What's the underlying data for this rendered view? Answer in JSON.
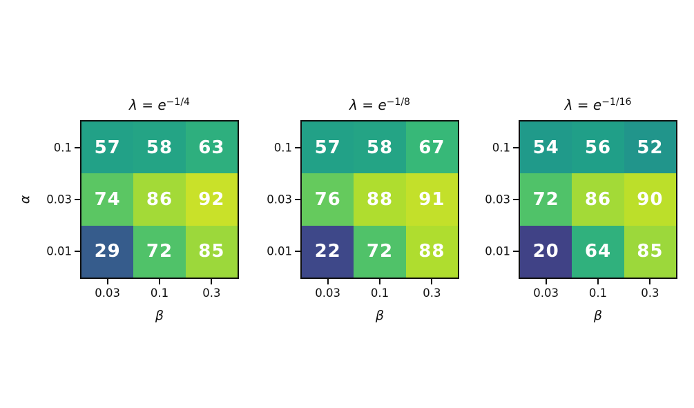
{
  "figure": {
    "background": "#ffffff",
    "axis_color": "#0f0f0f",
    "annotation_text_color": "#ffffff",
    "colormap": {
      "name": "viridis",
      "vmin": 0,
      "vmax": 100,
      "anchors": [
        "#440154",
        "#482878",
        "#3e4989",
        "#31688e",
        "#26828e",
        "#1f9e89",
        "#35b779",
        "#6ece58",
        "#b5de2b",
        "#fde725"
      ]
    }
  },
  "chart_data": [
    {
      "type": "heatmap",
      "title": "λ = e^(−1/4)",
      "title_base": "λ = e",
      "title_exponent": "−1/4",
      "xlabel": "β",
      "ylabel": "α",
      "x_ticks": [
        "0.03",
        "0.1",
        "0.3"
      ],
      "y_ticks": [
        "0.1",
        "0.03",
        "0.01"
      ],
      "rows": [
        [
          57,
          58,
          63
        ],
        [
          74,
          86,
          92
        ],
        [
          29,
          72,
          85
        ]
      ],
      "colormap": "viridis",
      "vmin": 0,
      "vmax": 100,
      "annotations": "cell values shown in white bold"
    },
    {
      "type": "heatmap",
      "title": "λ = e^(−1/8)",
      "title_base": "λ = e",
      "title_exponent": "−1/8",
      "xlabel": "β",
      "ylabel": "",
      "x_ticks": [
        "0.03",
        "0.1",
        "0.3"
      ],
      "y_ticks": [
        "0.1",
        "0.03",
        "0.01"
      ],
      "rows": [
        [
          57,
          58,
          67
        ],
        [
          76,
          88,
          91
        ],
        [
          22,
          72,
          88
        ]
      ],
      "colormap": "viridis",
      "vmin": 0,
      "vmax": 100,
      "annotations": "cell values shown in white bold"
    },
    {
      "type": "heatmap",
      "title": "λ = e^(−1/16)",
      "title_base": "λ = e",
      "title_exponent": "−1/16",
      "xlabel": "β",
      "ylabel": "",
      "x_ticks": [
        "0.03",
        "0.1",
        "0.3"
      ],
      "y_ticks": [
        "0.1",
        "0.03",
        "0.01"
      ],
      "rows": [
        [
          54,
          56,
          52
        ],
        [
          72,
          86,
          90
        ],
        [
          20,
          64,
          85
        ]
      ],
      "colormap": "viridis",
      "vmin": 0,
      "vmax": 100,
      "annotations": "cell values shown in white bold"
    }
  ]
}
